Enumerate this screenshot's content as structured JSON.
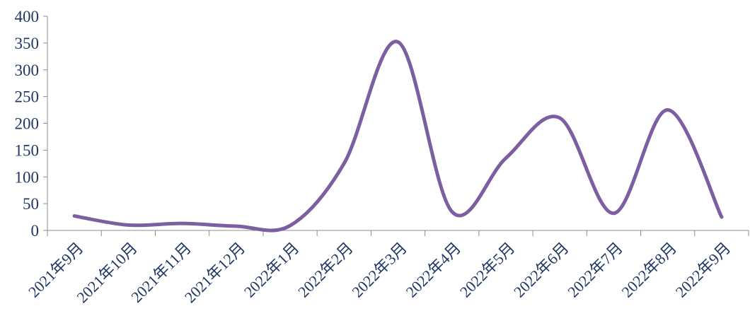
{
  "chart_data": {
    "type": "line",
    "title": "",
    "xlabel": "",
    "ylabel": "",
    "categories": [
      "2021年9月",
      "2021年10月",
      "2021年11月",
      "2021年12月",
      "2022年1月",
      "2022年2月",
      "2022年3月",
      "2022年4月",
      "2022年5月",
      "2022年6月",
      "2022年7月",
      "2022年8月",
      "2022年9月"
    ],
    "yticks": [
      "0",
      "50",
      "100",
      "150",
      "200",
      "250",
      "300",
      "350",
      "400"
    ],
    "ylim": [
      0,
      400
    ],
    "grid": false,
    "smooth": true,
    "series": [
      {
        "color": "#7b5fa0",
        "values": [
          27,
          10,
          13,
          8,
          9,
          125,
          352,
          35,
          135,
          210,
          32,
          225,
          25
        ]
      }
    ]
  }
}
